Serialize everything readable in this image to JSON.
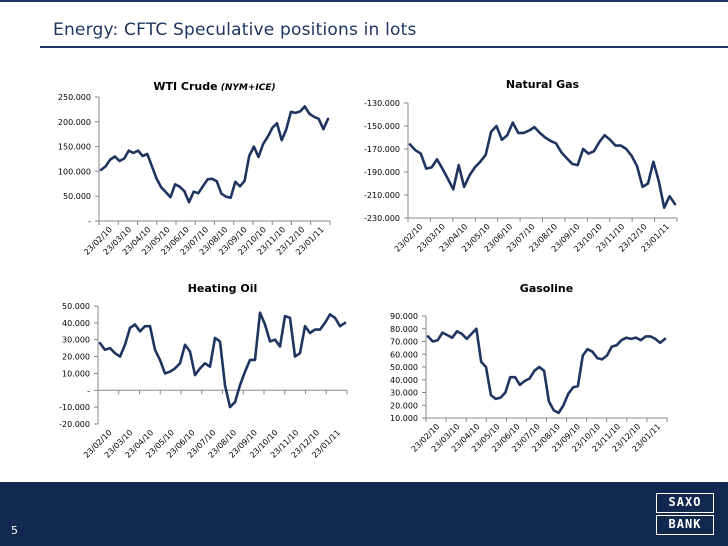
{
  "slide": {
    "title": "Energy: CFTC Speculative positions in lots",
    "page_number": "5",
    "logo_top": "SAXO",
    "logo_bottom": "BANK"
  },
  "colors": {
    "line": "#1f3560",
    "axis": "#8a8a8a",
    "text": "#000000",
    "footer": "#13284f"
  },
  "chart_data": [
    {
      "type": "line",
      "title": "WTI Crude",
      "title_suffix": "(NYM+ICE)",
      "x_tick_labels": [
        "23/02/10",
        "23/03/10",
        "23/04/10",
        "23/05/10",
        "23/06/10",
        "23/07/10",
        "23/08/10",
        "23/09/10",
        "23/10/10",
        "23/11/10",
        "23/12/10",
        "23/01/11"
      ],
      "y_tick_labels": [
        "250.000",
        "200.000",
        "150.000",
        "100.000",
        "50.000",
        "-"
      ],
      "y_ticks": [
        250000,
        200000,
        150000,
        100000,
        50000,
        0
      ],
      "ylim": [
        0,
        250000
      ],
      "series": [
        {
          "values": [
            103000,
            110000,
            124000,
            130000,
            121000,
            126000,
            142000,
            137000,
            142000,
            131000,
            135000,
            110000,
            85000,
            68000,
            58000,
            48000,
            74000,
            69000,
            60000,
            38000,
            59000,
            56000,
            70000,
            84000,
            85000,
            80000,
            55000,
            49000,
            47000,
            79000,
            70000,
            81000,
            131000,
            150000,
            129000,
            155000,
            170000,
            188000,
            197000,
            163000,
            185000,
            220000,
            218000,
            221000,
            231000,
            216000,
            210000,
            206000,
            185000,
            206000
          ]
        }
      ]
    },
    {
      "type": "line",
      "title": "Natural Gas",
      "x_tick_labels": [
        "23/02/10",
        "23/03/10",
        "23/04/10",
        "23/05/10",
        "23/06/10",
        "23/07/10",
        "23/08/10",
        "23/09/10",
        "23/10/10",
        "23/11/10",
        "23/12/10",
        "23/01/11"
      ],
      "y_tick_labels": [
        "-130.000",
        "-150.000",
        "-170.000",
        "-190.000",
        "-210.000",
        "-230.000"
      ],
      "y_ticks": [
        -130000,
        -150000,
        -170000,
        -190000,
        -210000,
        -230000
      ],
      "ylim": [
        -230000,
        -130000
      ],
      "series": [
        {
          "values": [
            -166000,
            -171000,
            -174000,
            -187000,
            -186000,
            -179000,
            -187000,
            -196000,
            -205000,
            -184000,
            -203000,
            -193000,
            -186000,
            -181000,
            -175000,
            -155000,
            -150000,
            -162000,
            -158000,
            -147000,
            -156000,
            -156000,
            -154000,
            -151000,
            -156000,
            -160000,
            -163000,
            -165000,
            -173000,
            -178000,
            -183000,
            -184000,
            -170000,
            -174000,
            -172000,
            -164000,
            -158000,
            -162000,
            -167000,
            -167000,
            -170000,
            -176000,
            -185000,
            -203000,
            -200000,
            -181000,
            -198000,
            -221000,
            -211000,
            -218000
          ]
        }
      ]
    },
    {
      "type": "line",
      "title": "Heating Oil",
      "x_tick_labels": [
        "23/02/10",
        "23/03/10",
        "23/04/10",
        "23/05/10",
        "23/06/10",
        "23/07/10",
        "23/08/10",
        "23/09/10",
        "23/10/10",
        "23/11/10",
        "23/12/10",
        "23/01/11"
      ],
      "y_tick_labels": [
        "50.000",
        "40.000",
        "30.000",
        "20.000",
        "10.000",
        "-",
        "-10.000",
        "-20.000"
      ],
      "y_ticks": [
        50000,
        40000,
        30000,
        20000,
        10000,
        0,
        -10000,
        -20000
      ],
      "ylim": [
        -20000,
        50000
      ],
      "series": [
        {
          "values": [
            28000,
            24000,
            25000,
            22000,
            20000,
            27000,
            37000,
            39000,
            35000,
            38000,
            38000,
            24000,
            18000,
            10000,
            11000,
            13000,
            16000,
            27000,
            23000,
            9000,
            13000,
            16000,
            14000,
            31000,
            29000,
            3000,
            -10000,
            -7000,
            3000,
            11000,
            18000,
            18000,
            46000,
            39000,
            29000,
            30000,
            26000,
            44000,
            43000,
            20000,
            22000,
            38000,
            34000,
            36000,
            36000,
            40000,
            45000,
            43000,
            38000,
            40000
          ]
        }
      ]
    },
    {
      "type": "line",
      "title": "Gasoline",
      "x_tick_labels": [
        "23/02/10",
        "23/03/10",
        "23/04/10",
        "23/05/10",
        "23/06/10",
        "23/07/10",
        "23/08/10",
        "23/09/10",
        "23/10/10",
        "23/11/10",
        "23/12/10",
        "23/01/11"
      ],
      "y_tick_labels": [
        "90.000",
        "80.000",
        "70.000",
        "60.000",
        "50.000",
        "40.000",
        "30.000",
        "20.000",
        "10.000"
      ],
      "y_ticks": [
        90000,
        80000,
        70000,
        60000,
        50000,
        40000,
        30000,
        20000,
        10000
      ],
      "ylim": [
        10000,
        90000
      ],
      "series": [
        {
          "values": [
            74000,
            70000,
            71000,
            77000,
            75000,
            73000,
            78000,
            76000,
            72000,
            76000,
            80000,
            54000,
            50000,
            28000,
            25000,
            26000,
            30000,
            42000,
            42000,
            36000,
            39000,
            41000,
            47000,
            50000,
            47000,
            23000,
            16000,
            14000,
            20000,
            29000,
            34000,
            35000,
            59000,
            64000,
            62000,
            57000,
            56000,
            59000,
            66000,
            67000,
            71000,
            73000,
            72000,
            73000,
            71000,
            74000,
            74000,
            72000,
            69000,
            72000
          ]
        }
      ]
    }
  ]
}
